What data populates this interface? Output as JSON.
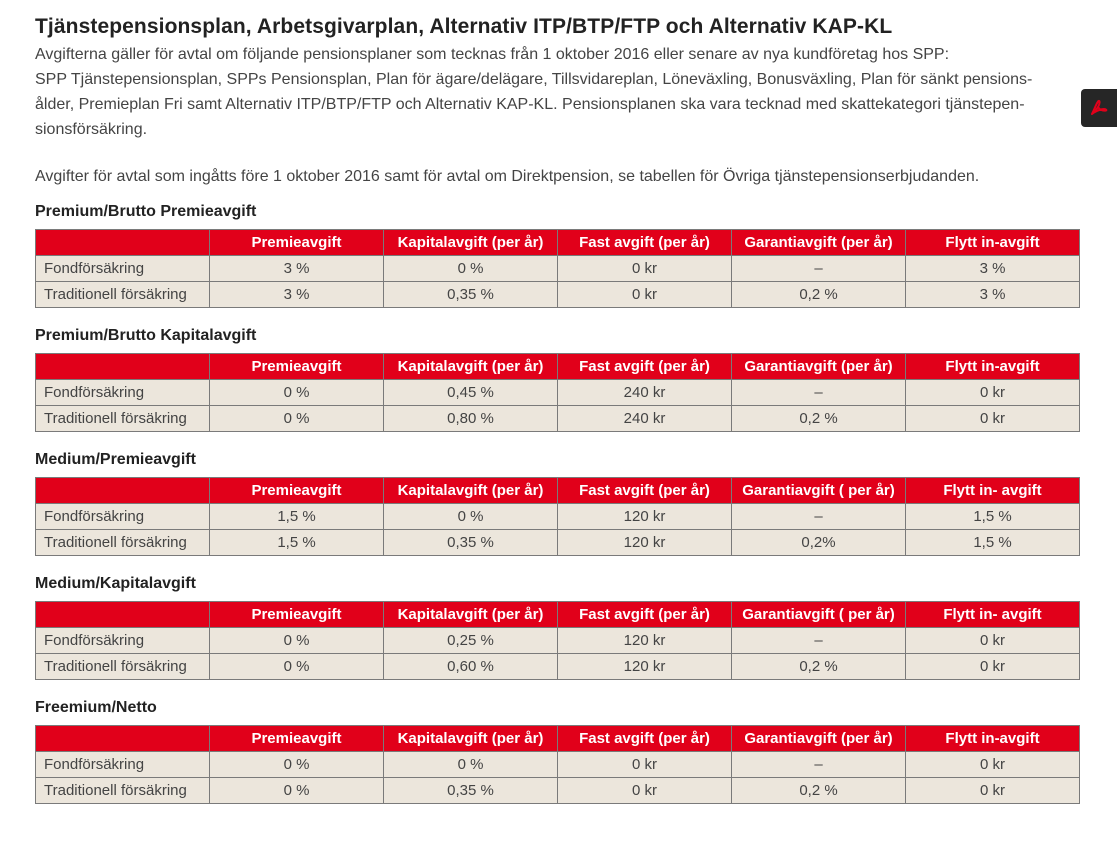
{
  "page": {
    "title": "Tjänstepensionsplan, Arbetsgivarplan, Alternativ ITP/BTP/FTP och Alternativ KAP-KL",
    "intro_lines": [
      "Avgifterna gäller för avtal om följande pensionsplaner som tecknas från 1 oktober 2016 eller senare av nya kundföretag hos SPP:",
      "SPP Tjänstepensionsplan, SPPs Pensionsplan, Plan för ägare/delägare, Tillsvidareplan, Löneväxling, Bonusväxling, Plan för sänkt pensions-",
      "ålder, Premieplan Fri samt Alternativ ITP/BTP/FTP och Alternativ KAP-KL. Pensionsplanen ska vara tecknad med skattekategori tjänstepen-",
      "sionsförsäkring."
    ],
    "note": "Avgifter för avtal som ingåtts före 1 oktober 2016 samt för avtal om Direktpension, se tabellen för Övriga tjänstepensionserbjudanden."
  },
  "pdf_button": {
    "icon": "pdf-icon",
    "color": "#e1001a"
  },
  "colors": {
    "header_bg": "#e1001a",
    "row_bg": "#ece6dc"
  },
  "tables": [
    {
      "heading": "Premium/Brutto Premieavgift",
      "columns": [
        "",
        "Premieavgift",
        "Kapitalavgift (per år)",
        "Fast avgift (per år)",
        "Garantiavgift (per år)",
        "Flytt in-avgift"
      ],
      "rows": [
        [
          "Fondförsäkring",
          "3 %",
          "0 %",
          "0 kr",
          "–",
          "3 %"
        ],
        [
          "Traditionell försäkring",
          "3 %",
          "0,35 %",
          "0 kr",
          "0,2 %",
          "3 %"
        ]
      ]
    },
    {
      "heading": "Premium/Brutto Kapitalavgift",
      "columns": [
        "",
        "Premieavgift",
        "Kapitalavgift (per år)",
        "Fast avgift (per år)",
        "Garantiavgift (per år)",
        "Flytt in-avgift"
      ],
      "rows": [
        [
          "Fondförsäkring",
          "0 %",
          "0,45 %",
          "240 kr",
          "–",
          "0 kr"
        ],
        [
          "Traditionell  försäkring",
          "0 %",
          "0,80 %",
          "240 kr",
          "0,2 %",
          "0 kr"
        ]
      ]
    },
    {
      "heading": "Medium/Premieavgift",
      "columns": [
        "",
        "Premieavgift",
        "Kapitalavgift (per år)",
        "Fast avgift (per år)",
        "Garantiavgift ( per år)",
        "Flytt in- avgift"
      ],
      "rows": [
        [
          "Fondförsäkring",
          "1,5 %",
          "0 %",
          "120 kr",
          "–",
          "1,5 %"
        ],
        [
          "Traditionell försäkring",
          "1,5 %",
          "0,35 %",
          "120 kr",
          "0,2%",
          "1,5 %"
        ]
      ]
    },
    {
      "heading": "Medium/Kapitalavgift",
      "columns": [
        "",
        "Premieavgift",
        "Kapitalavgift (per år)",
        "Fast avgift (per år)",
        "Garantiavgift ( per år)",
        "Flytt in- avgift"
      ],
      "rows": [
        [
          "Fondförsäkring",
          "0 %",
          "0,25 %",
          "120 kr",
          "–",
          "0 kr"
        ],
        [
          "Traditionell försäkring",
          "0 %",
          "0,60 %",
          "120 kr",
          "0,2 %",
          "0 kr"
        ]
      ]
    },
    {
      "heading": "Freemium/Netto",
      "columns": [
        "",
        "Premieavgift",
        "Kapitalavgift (per år)",
        "Fast avgift (per år)",
        "Garantiavgift (per år)",
        "Flytt in-avgift"
      ],
      "rows": [
        [
          "Fondförsäkring",
          "0 %",
          "0 %",
          "0 kr",
          "–",
          "0 kr"
        ],
        [
          "Traditionell försäkring",
          "0 %",
          "0,35 %",
          "0 kr",
          "0,2 %",
          "0 kr"
        ]
      ]
    }
  ]
}
